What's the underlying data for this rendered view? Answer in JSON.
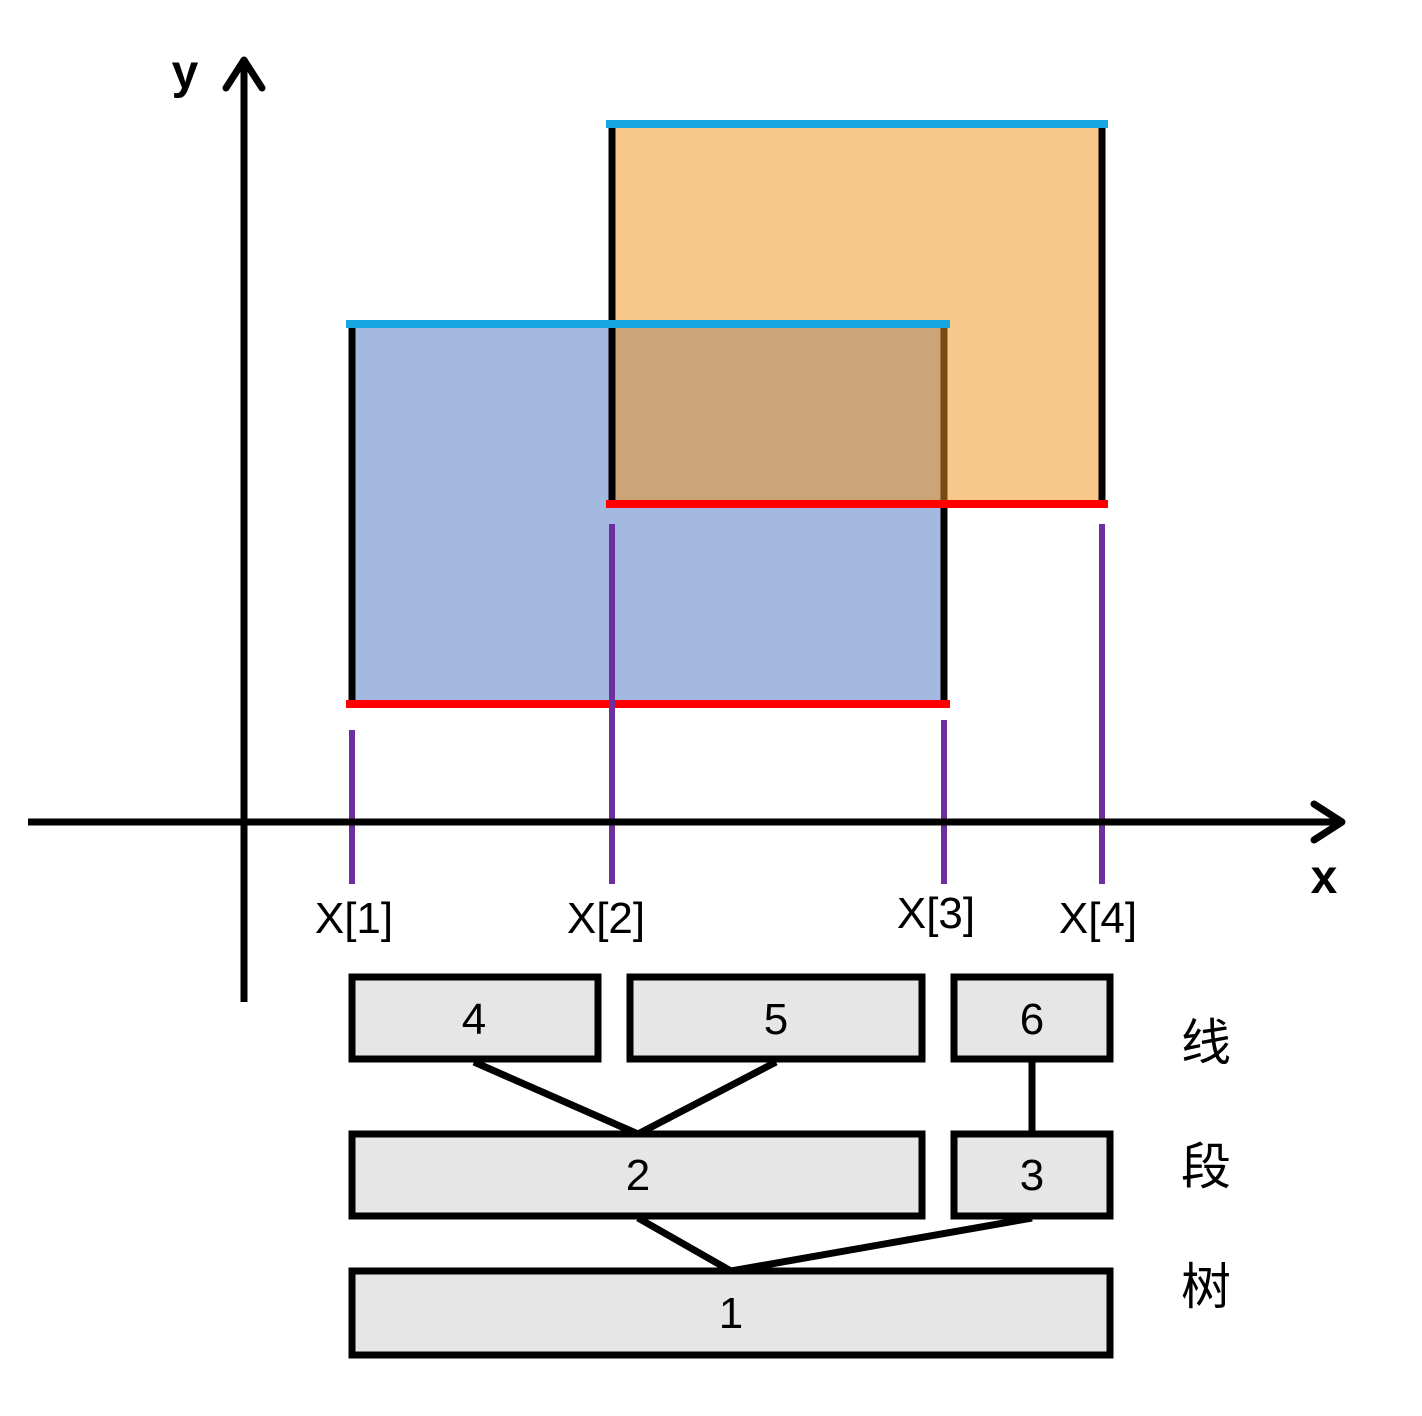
{
  "axes": {
    "x_label": "x",
    "y_label": "y"
  },
  "ticks": [
    "X[1]",
    "X[2]",
    "X[3]",
    "X[4]"
  ],
  "tree_nodes": {
    "root": "1",
    "level2_left": "2",
    "level2_right": "3",
    "leaf_a": "4",
    "leaf_b": "5",
    "leaf_c": "6"
  },
  "side_text": [
    "线",
    "段",
    "树"
  ],
  "colors": {
    "rect_blue": "#a3b9e0",
    "rect_orange": "#f8c78a",
    "overlap": "#cba478",
    "top_edge": "#17a6e2",
    "bottom_edge": "#ff0000",
    "projection": "#6d2fa0",
    "node_fill": "#e6e6e6"
  }
}
